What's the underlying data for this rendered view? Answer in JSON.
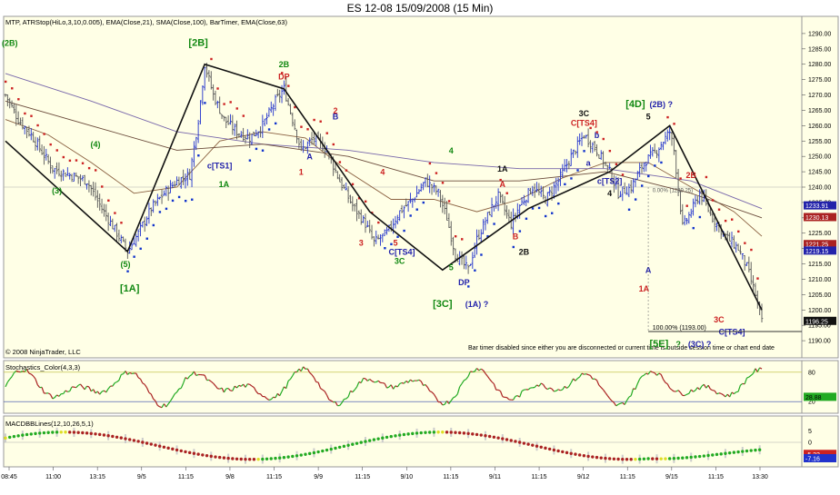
{
  "window_title": "ES 12-08  15/09/2008 (15 Min)",
  "indicator_legend": "MTP,  ATRStop(HiLo,3,10,0.005),  EMA(Close,21),  SMA(Close,100),  BarTimer,  EMA(Close,63)",
  "copyright": "© 2008 NinjaTrader, LLC",
  "bartimer_message": "Bar timer disabled since either you are disconnected or current time is outside session time or chart end date",
  "colors": {
    "background": "#ffffe6",
    "price_up": "#2233cc",
    "price_down": "#555555",
    "stop_above": "#cc2222",
    "stop_below": "#1133cc",
    "wave_line": "#111111",
    "green_label": "#118811",
    "red_label": "#cc2222",
    "blue_label": "#2222aa",
    "stoch_up": "#22aa22",
    "stoch_down": "#aa2222",
    "current_price_box": "#111111"
  },
  "chart_data": [
    {
      "type": "candlestick-ohlc",
      "panel": "price",
      "ylim": [
        1185,
        1295
      ],
      "ytick_values": [
        1190,
        1195,
        1200,
        1205,
        1210,
        1215,
        1220,
        1225,
        1230,
        1235,
        1240,
        1245,
        1250,
        1255,
        1260,
        1265,
        1270,
        1275,
        1280,
        1285,
        1290
      ],
      "ytick_labels": [
        "1190.00",
        "1195.00",
        "1200.00",
        "1205.00",
        "1210.00",
        "1215.00",
        "1220.00",
        "1225.00",
        "1230.00",
        "1235.00",
        "1240.00",
        "1245.00",
        "1250.00",
        "1255.00",
        "1260.00",
        "1265.00",
        "1270.00",
        "1275.00",
        "1280.00",
        "1285.00",
        "1290.00"
      ],
      "price_boxes": [
        {
          "label": "1233.91",
          "value": 1233.9,
          "color": "#2222aa"
        },
        {
          "label": "1230.13",
          "value": 1230.1,
          "color": "#aa2222"
        },
        {
          "label": "1221.25",
          "value": 1221.3,
          "color": "#aa2222"
        },
        {
          "label": "1219.15",
          "value": 1219.2,
          "color": "#2222aa"
        },
        {
          "label": "1196.25",
          "value": 1196.3,
          "color": "#111111"
        }
      ],
      "close_path": [
        [
          0,
          1270
        ],
        [
          6,
          1262
        ],
        [
          12,
          1257
        ],
        [
          22,
          1246
        ],
        [
          30,
          1244
        ],
        [
          38,
          1242
        ],
        [
          45,
          1233
        ],
        [
          52,
          1225
        ],
        [
          57,
          1219
        ],
        [
          62,
          1225
        ],
        [
          68,
          1233
        ],
        [
          74,
          1238
        ],
        [
          80,
          1242
        ],
        [
          86,
          1244
        ],
        [
          90,
          1262
        ],
        [
          93,
          1280
        ],
        [
          97,
          1270
        ],
        [
          102,
          1262
        ],
        [
          108,
          1258
        ],
        [
          114,
          1256
        ],
        [
          120,
          1260
        ],
        [
          126,
          1268
        ],
        [
          130,
          1272
        ],
        [
          134,
          1262
        ],
        [
          138,
          1252
        ],
        [
          144,
          1256
        ],
        [
          150,
          1252
        ],
        [
          156,
          1242
        ],
        [
          162,
          1234
        ],
        [
          168,
          1228
        ],
        [
          172,
          1222
        ],
        [
          178,
          1225
        ],
        [
          184,
          1232
        ],
        [
          190,
          1236
        ],
        [
          196,
          1242
        ],
        [
          202,
          1238
        ],
        [
          206,
          1230
        ],
        [
          210,
          1218
        ],
        [
          216,
          1213
        ],
        [
          220,
          1223
        ],
        [
          226,
          1232
        ],
        [
          230,
          1237
        ],
        [
          236,
          1228
        ],
        [
          240,
          1234
        ],
        [
          246,
          1240
        ],
        [
          252,
          1236
        ],
        [
          258,
          1242
        ],
        [
          264,
          1250
        ],
        [
          270,
          1257
        ],
        [
          276,
          1252
        ],
        [
          282,
          1245
        ],
        [
          286,
          1238
        ],
        [
          292,
          1240
        ],
        [
          298,
          1248
        ],
        [
          304,
          1252
        ],
        [
          310,
          1258
        ],
        [
          312,
          1252
        ],
        [
          316,
          1227
        ],
        [
          320,
          1232
        ],
        [
          324,
          1238
        ],
        [
          330,
          1230
        ],
        [
          336,
          1224
        ],
        [
          342,
          1220
        ],
        [
          346,
          1214
        ],
        [
          350,
          1205
        ],
        [
          353,
          1196
        ]
      ],
      "series": [
        {
          "name": "EMA(Close,21)",
          "color": "#8a6040",
          "values": [
            [
              0,
              1262
            ],
            [
              20,
              1257
            ],
            [
              40,
              1248
            ],
            [
              60,
              1238
            ],
            [
              80,
              1240
            ],
            [
              100,
              1255
            ],
            [
              120,
              1258
            ],
            [
              140,
              1256
            ],
            [
              160,
              1245
            ],
            [
              180,
              1236
            ],
            [
              200,
              1236
            ],
            [
              220,
              1232
            ],
            [
              240,
              1236
            ],
            [
              260,
              1243
            ],
            [
              280,
              1248
            ],
            [
              300,
              1248
            ],
            [
              320,
              1240
            ],
            [
              340,
              1232
            ],
            [
              353,
              1224
            ]
          ]
        },
        {
          "name": "SMA(Close,100)",
          "color": "#7766aa",
          "values": [
            [
              0,
              1277
            ],
            [
              40,
              1268
            ],
            [
              80,
              1258
            ],
            [
              120,
              1254
            ],
            [
              160,
              1252
            ],
            [
              200,
              1248
            ],
            [
              240,
              1246
            ],
            [
              280,
              1246
            ],
            [
              320,
              1242
            ],
            [
              353,
              1233
            ]
          ]
        },
        {
          "name": "EMA(Close,63)",
          "color": "#6a4a3a",
          "values": [
            [
              0,
              1268
            ],
            [
              40,
              1260
            ],
            [
              80,
              1252
            ],
            [
              120,
              1254
            ],
            [
              160,
              1250
            ],
            [
              200,
              1242
            ],
            [
              240,
              1242
            ],
            [
              280,
              1245
            ],
            [
              320,
              1238
            ],
            [
              353,
              1230
            ]
          ]
        }
      ],
      "elliott_wave_path": [
        [
          0,
          1255
        ],
        [
          57,
          1219
        ],
        [
          93,
          1280
        ],
        [
          130,
          1272
        ],
        [
          170,
          1232
        ],
        [
          204,
          1213
        ],
        [
          244,
          1233
        ],
        [
          282,
          1245
        ],
        [
          310,
          1260
        ],
        [
          353,
          1200
        ]
      ],
      "wave_labels": [
        {
          "text": "(2B)",
          "i": 2,
          "price": 1286,
          "color": "#118811"
        },
        {
          "text": "[2B]",
          "i": 90,
          "price": 1286,
          "color": "#118811"
        },
        {
          "text": "(4)",
          "i": 42,
          "price": 1253,
          "color": "#118811"
        },
        {
          "text": "(3)",
          "i": 24,
          "price": 1238,
          "color": "#118811"
        },
        {
          "text": "(5)",
          "i": 56,
          "price": 1214,
          "color": "#118811"
        },
        {
          "text": "[1A]",
          "i": 58,
          "price": 1206,
          "color": "#118811"
        },
        {
          "text": "c[TS1]",
          "i": 100,
          "price": 1246,
          "color": "#2222aa"
        },
        {
          "text": "1A",
          "i": 102,
          "price": 1240,
          "color": "#118811"
        },
        {
          "text": "2B",
          "i": 130,
          "price": 1279,
          "color": "#118811"
        },
        {
          "text": "DP",
          "i": 130,
          "price": 1275,
          "color": "#cc2222"
        },
        {
          "text": "B",
          "i": 154,
          "price": 1262,
          "color": "#2222aa"
        },
        {
          "text": "2",
          "i": 154,
          "price": 1264,
          "color": "#cc2222"
        },
        {
          "text": "A",
          "i": 142,
          "price": 1249,
          "color": "#2222aa"
        },
        {
          "text": "1",
          "i": 138,
          "price": 1244,
          "color": "#cc2222"
        },
        {
          "text": "4",
          "i": 176,
          "price": 1244,
          "color": "#cc2222"
        },
        {
          "text": "3",
          "i": 166,
          "price": 1221,
          "color": "#cc2222"
        },
        {
          "text": "5",
          "i": 182,
          "price": 1221,
          "color": "#cc2222"
        },
        {
          "text": "C[TS4]",
          "i": 185,
          "price": 1218,
          "color": "#2222aa"
        },
        {
          "text": "3C",
          "i": 184,
          "price": 1215,
          "color": "#118811"
        },
        {
          "text": "4",
          "i": 208,
          "price": 1251,
          "color": "#118811"
        },
        {
          "text": "5",
          "i": 208,
          "price": 1213,
          "color": "#118811"
        },
        {
          "text": "DP",
          "i": 214,
          "price": 1208,
          "color": "#2222aa"
        },
        {
          "text": "[3C]",
          "i": 204,
          "price": 1201,
          "color": "#118811"
        },
        {
          "text": "(1A) ?",
          "i": 220,
          "price": 1201,
          "color": "#2222aa"
        },
        {
          "text": "1A",
          "i": 232,
          "price": 1245,
          "color": "#111111"
        },
        {
          "text": "A",
          "i": 232,
          "price": 1240,
          "color": "#cc2222"
        },
        {
          "text": "B",
          "i": 238,
          "price": 1223,
          "color": "#cc2222"
        },
        {
          "text": "2B",
          "i": 242,
          "price": 1218,
          "color": "#111111"
        },
        {
          "text": "3C",
          "i": 270,
          "price": 1263,
          "color": "#111111"
        },
        {
          "text": "C[TS4]",
          "i": 270,
          "price": 1260,
          "color": "#cc2222"
        },
        {
          "text": "b",
          "i": 276,
          "price": 1256,
          "color": "#2222aa"
        },
        {
          "text": "a",
          "i": 272,
          "price": 1247,
          "color": "#2222aa"
        },
        {
          "text": "c[TS2]",
          "i": 282,
          "price": 1241,
          "color": "#2222aa"
        },
        {
          "text": "4",
          "i": 282,
          "price": 1237,
          "color": "#111111"
        },
        {
          "text": "[4D]",
          "i": 294,
          "price": 1266,
          "color": "#118811"
        },
        {
          "text": "5",
          "i": 300,
          "price": 1262,
          "color": "#111111"
        },
        {
          "text": "(2B) ?",
          "i": 306,
          "price": 1266,
          "color": "#2222aa"
        },
        {
          "text": "2B",
          "i": 320,
          "price": 1243,
          "color": "#cc2222"
        },
        {
          "text": "A",
          "i": 300,
          "price": 1212,
          "color": "#2222aa"
        },
        {
          "text": "1A",
          "i": 298,
          "price": 1206,
          "color": "#cc2222"
        },
        {
          "text": "3C",
          "i": 333,
          "price": 1196,
          "color": "#cc2222"
        },
        {
          "text": "C[TS4]",
          "i": 339,
          "price": 1192,
          "color": "#2222aa"
        },
        {
          "text": "[5E]",
          "i": 305,
          "price": 1188,
          "color": "#118811"
        },
        {
          "text": "?",
          "i": 314,
          "price": 1188,
          "color": "#118811"
        },
        {
          "text": "(3C) ?",
          "i": 324,
          "price": 1188,
          "color": "#2222aa"
        }
      ],
      "fib_annotation": "100.00% (1193.00)",
      "fib_price": 1193,
      "fib_small_text": "0.00% (1239.25)",
      "xtick_labels": [
        "08:45",
        "11:00",
        "13:15",
        "9/5",
        "11:15",
        "9/8",
        "11:15",
        "9/9",
        "11:15",
        "9/10",
        "11:15",
        "9/11",
        "11:15",
        "9/12",
        "11:15",
        "9/15",
        "11:15",
        "13:30"
      ]
    },
    {
      "type": "line",
      "panel": "stochastics",
      "title": "Stochastics_Color(4,3,3)",
      "ylim": [
        0,
        100
      ],
      "ytick_labels": [
        "80",
        "20"
      ],
      "last_value_label": "28.88",
      "levels": [
        20,
        80
      ]
    },
    {
      "type": "line",
      "panel": "macd",
      "title": "MACDBBLines(12,10,26,5,1)",
      "ylim": [
        -10,
        10
      ],
      "ytick_labels": [
        "5",
        "0",
        "-5"
      ],
      "last_value_labels": [
        "-5.32",
        "-7.16"
      ]
    }
  ]
}
